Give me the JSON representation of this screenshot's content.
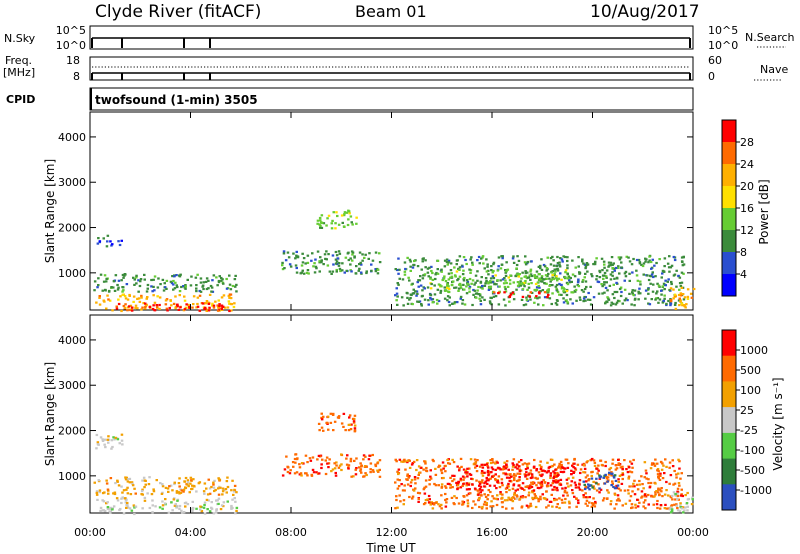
{
  "header": {
    "station": "Clyde River (fitACF)",
    "beam": "Beam 01",
    "date": "10/Aug/2017"
  },
  "summary_panels": {
    "nsky_label": "N.Sky",
    "nsky_ticks": [
      "10^5",
      "10^0"
    ],
    "nsearch_label": "N.Search",
    "nsearch_ticks": [
      "10^5",
      "10^0"
    ],
    "freq_label": "Freq.",
    "freq_unit": "[MHz]",
    "freq_ticks": [
      "18",
      "8"
    ],
    "nave_label": "Nave",
    "nave_ticks": [
      "60",
      "0"
    ],
    "cpid_label": "CPID",
    "cpid_text": "twofsound (1-min) 3505"
  },
  "colors": {
    "power": [
      "#0000ff",
      "#2a4fd0",
      "#3b8b3b",
      "#66cc33",
      "#ffe000",
      "#ffb000",
      "#ff6a00",
      "#ff0000"
    ],
    "velocity": [
      "#2b4fbf",
      "#2e7d3a",
      "#55cc44",
      "#c8c8c8",
      "#f2a000",
      "#ff6a00",
      "#ff0000"
    ]
  },
  "chart_data": [
    {
      "type": "heatmap",
      "quantity": "power",
      "ylabel": "Slant Range [km]",
      "xlabel": "",
      "x_ticks": [
        "00:00",
        "04:00",
        "08:00",
        "12:00",
        "16:00",
        "20:00",
        "00:00"
      ],
      "y_ticks": [
        "1000",
        "2000",
        "3000",
        "4000"
      ],
      "ylim": [
        180,
        4550
      ],
      "xlim_hours": [
        0,
        24
      ],
      "colorbar": {
        "label": "Power [dB]",
        "ticks": [
          "4",
          "8",
          "12",
          "16",
          "20",
          "24",
          "28"
        ]
      },
      "regions": [
        {
          "t0": 0.2,
          "t1": 1.3,
          "r0": 1600,
          "r1": 1850,
          "level": 1
        },
        {
          "t0": 0.1,
          "t1": 5.8,
          "r0": 600,
          "r1": 1000,
          "level": 2
        },
        {
          "t0": 0.2,
          "t1": 5.8,
          "r0": 180,
          "r1": 550,
          "level": 5
        },
        {
          "t0": 1.0,
          "t1": 5.5,
          "r0": 180,
          "r1": 350,
          "level": 7
        },
        {
          "t0": 7.6,
          "t1": 11.5,
          "r0": 1000,
          "r1": 1500,
          "level": 2
        },
        {
          "t0": 9.0,
          "t1": 10.6,
          "r0": 2000,
          "r1": 2400,
          "level": 3
        },
        {
          "t0": 12.1,
          "t1": 23.6,
          "r0": 300,
          "r1": 1400,
          "level": 2
        },
        {
          "t0": 13.5,
          "t1": 19.0,
          "r0": 600,
          "r1": 1100,
          "level": 3
        },
        {
          "t0": 16.0,
          "t1": 18.2,
          "r0": 480,
          "r1": 600,
          "level": 7
        },
        {
          "t0": 23.0,
          "t1": 24.0,
          "r0": 200,
          "r1": 700,
          "level": 5
        }
      ]
    },
    {
      "type": "heatmap",
      "quantity": "velocity",
      "ylabel": "Slant Range [km]",
      "xlabel": "Time UT",
      "x_ticks": [
        "00:00",
        "04:00",
        "08:00",
        "12:00",
        "16:00",
        "20:00",
        "00:00"
      ],
      "y_ticks": [
        "1000",
        "2000",
        "3000",
        "4000"
      ],
      "ylim": [
        180,
        4550
      ],
      "xlim_hours": [
        0,
        24
      ],
      "colorbar": {
        "label": "Velocity [m s⁻¹]",
        "ticks": [
          "1000",
          "500",
          "100",
          "25",
          "-25",
          "-100",
          "-500",
          "-1000"
        ]
      },
      "regions": [
        {
          "t0": 0.2,
          "t1": 1.3,
          "r0": 1600,
          "r1": 2000,
          "level": 3
        },
        {
          "t0": 0.1,
          "t1": 5.8,
          "r0": 600,
          "r1": 1000,
          "level": 4
        },
        {
          "t0": 0.2,
          "t1": 5.8,
          "r0": 180,
          "r1": 550,
          "level": 3
        },
        {
          "t0": 7.6,
          "t1": 11.5,
          "r0": 1000,
          "r1": 1500,
          "level": 5
        },
        {
          "t0": 9.0,
          "t1": 10.6,
          "r0": 2000,
          "r1": 2400,
          "level": 5
        },
        {
          "t0": 12.1,
          "t1": 23.6,
          "r0": 300,
          "r1": 1400,
          "level": 5
        },
        {
          "t0": 14.5,
          "t1": 19.5,
          "r0": 700,
          "r1": 1300,
          "level": 6
        },
        {
          "t0": 16.0,
          "t1": 18.2,
          "r0": 480,
          "r1": 600,
          "level": 4
        },
        {
          "t0": 19.5,
          "t1": 21.0,
          "r0": 700,
          "r1": 1100,
          "level": 0
        },
        {
          "t0": 23.0,
          "t1": 24.0,
          "r0": 200,
          "r1": 700,
          "level": 3
        }
      ]
    }
  ]
}
